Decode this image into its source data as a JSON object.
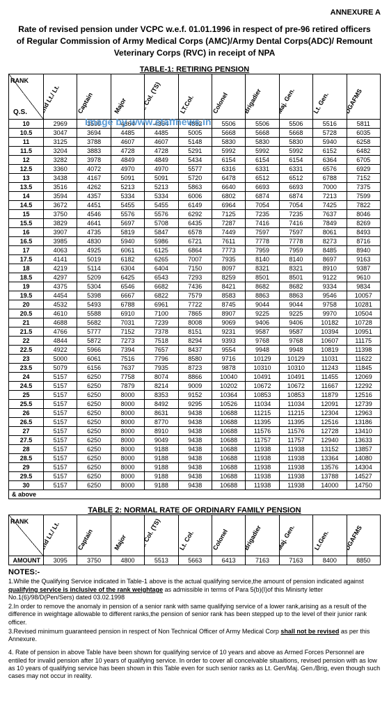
{
  "annexure": "ANNEXURE A",
  "heading": "Rate of revised pension under VCPC w.e.f. 01.01.1996 in respect of pre-96 retired officers of Regular Commission of Army Medical Corps (AMC)/Army Dental Corps(ADC)/ Remount Veterinary Corps (RVC) in receipt of NPA",
  "watermark": "Image by www.staffnews.in",
  "table1": {
    "title": "TABLE-1: RETIRING PENSION",
    "rank_label": "RANK",
    "qs_label": "Q.S.",
    "columns": [
      "2nd Lt./ Lt.",
      "Captain",
      "Major",
      "Lt. Col. (TS)",
      "LT.Col.",
      "Colonel",
      "Brigadier",
      "Maj. Gen.",
      "Lt. Gen.",
      "DGAFMS"
    ],
    "rows": [
      [
        "10",
        2969,
        3599,
        4364,
        4364,
        4862,
        5506,
        5506,
        5506,
        5516,
        5811
      ],
      [
        "10.5",
        3047,
        3694,
        4485,
        4485,
        5005,
        5668,
        5668,
        5668,
        5728,
        6035
      ],
      [
        "11",
        3125,
        3788,
        4607,
        4607,
        5148,
        5830,
        5830,
        5830,
        5940,
        6258
      ],
      [
        "11.5",
        3204,
        3883,
        4728,
        4728,
        5291,
        5992,
        5992,
        5992,
        6152,
        6482
      ],
      [
        "12",
        3282,
        3978,
        4849,
        4849,
        5434,
        6154,
        6154,
        6154,
        6364,
        6705
      ],
      [
        "12.5",
        3360,
        4072,
        4970,
        4970,
        5577,
        6316,
        6331,
        6331,
        6576,
        6929
      ],
      [
        "13",
        3438,
        4167,
        5091,
        5091,
        5720,
        6478,
        6512,
        6512,
        6788,
        7152
      ],
      [
        "13.5",
        3516,
        4262,
        5213,
        5213,
        5863,
        6640,
        6693,
        6693,
        7000,
        7375
      ],
      [
        "14",
        3594,
        4357,
        5334,
        5334,
        6006,
        6802,
        6874,
        6874,
        7213,
        7599
      ],
      [
        "14.5",
        3672,
        4451,
        5455,
        5455,
        6149,
        6964,
        7054,
        7054,
        7425,
        7822
      ],
      [
        "15",
        3750,
        4546,
        5576,
        5576,
        6292,
        7125,
        7235,
        7235,
        7637,
        8046
      ],
      [
        "15.5",
        3829,
        4641,
        5697,
        5708,
        6435,
        7287,
        7416,
        7416,
        7849,
        8269
      ],
      [
        "16",
        3907,
        4735,
        5819,
        5847,
        6578,
        7449,
        7597,
        7597,
        8061,
        8493
      ],
      [
        "16.5",
        3985,
        4830,
        5940,
        5986,
        6721,
        7611,
        7778,
        7778,
        8273,
        8716
      ],
      [
        "17",
        4063,
        4925,
        6061,
        6125,
        6864,
        7773,
        7959,
        7959,
        8485,
        8940
      ],
      [
        "17.5",
        4141,
        5019,
        6182,
        6265,
        7007,
        7935,
        8140,
        8140,
        8697,
        9163
      ],
      [
        "18",
        4219,
        5114,
        6304,
        6404,
        7150,
        8097,
        8321,
        8321,
        8910,
        9387
      ],
      [
        "18.5",
        4297,
        5209,
        6425,
        6543,
        7293,
        8259,
        8501,
        8501,
        9122,
        9610
      ],
      [
        "19",
        4375,
        5304,
        6546,
        6682,
        7436,
        8421,
        8682,
        8682,
        9334,
        9834
      ],
      [
        "19.5",
        4454,
        5398,
        6667,
        6822,
        7579,
        8583,
        8863,
        8863,
        9546,
        10057
      ],
      [
        "20",
        4532,
        5493,
        6788,
        6961,
        7722,
        8745,
        9044,
        9044,
        9758,
        10281
      ],
      [
        "20.5",
        4610,
        5588,
        6910,
        7100,
        7865,
        8907,
        9225,
        9225,
        9970,
        10504
      ],
      [
        "21",
        4688,
        5682,
        7031,
        7239,
        8008,
        9069,
        9406,
        9406,
        10182,
        10728
      ],
      [
        "21.5",
        4766,
        5777,
        7152,
        7378,
        8151,
        9231,
        9587,
        9587,
        10394,
        10951
      ],
      [
        "22",
        4844,
        5872,
        7273,
        7518,
        8294,
        9393,
        9768,
        9768,
        10607,
        11175
      ],
      [
        "22.5",
        4922,
        5966,
        7394,
        7657,
        8437,
        9554,
        9948,
        9948,
        10819,
        11398
      ],
      [
        "23",
        5000,
        6061,
        7516,
        7796,
        8580,
        9716,
        10129,
        10129,
        11031,
        11622
      ],
      [
        "23.5",
        5079,
        6156,
        7637,
        7935,
        8723,
        9878,
        10310,
        10310,
        11243,
        11845
      ],
      [
        "24",
        5157,
        6250,
        7758,
        8074,
        8866,
        10040,
        10491,
        10491,
        11455,
        12069
      ],
      [
        "24.5",
        5157,
        6250,
        7879,
        8214,
        9009,
        10202,
        10672,
        10672,
        11667,
        12292
      ],
      [
        "25",
        5157,
        6250,
        8000,
        8353,
        9152,
        10364,
        10853,
        10853,
        11879,
        12516
      ],
      [
        "25.5",
        5157,
        6250,
        8000,
        8492,
        9295,
        10526,
        11034,
        11034,
        12091,
        12739
      ],
      [
        "26",
        5157,
        6250,
        8000,
        8631,
        9438,
        10688,
        11215,
        11215,
        12304,
        12963
      ],
      [
        "26.5",
        5157,
        6250,
        8000,
        8770,
        9438,
        10688,
        11395,
        11395,
        12516,
        13186
      ],
      [
        "27",
        5157,
        6250,
        8000,
        8910,
        9438,
        10688,
        11576,
        11576,
        12728,
        13410
      ],
      [
        "27.5",
        5157,
        6250,
        8000,
        9049,
        9438,
        10688,
        11757,
        11757,
        12940,
        13633
      ],
      [
        "28",
        5157,
        6250,
        8000,
        9188,
        9438,
        10688,
        11938,
        11938,
        13152,
        13857
      ],
      [
        "28.5",
        5157,
        6250,
        8000,
        9188,
        9438,
        10688,
        11938,
        11938,
        13364,
        14080
      ],
      [
        "29",
        5157,
        6250,
        8000,
        9188,
        9438,
        10688,
        11938,
        11938,
        13576,
        14304
      ],
      [
        "29.5",
        5157,
        6250,
        8000,
        9188,
        9438,
        10688,
        11938,
        11938,
        13788,
        14527
      ],
      [
        "30",
        5157,
        6250,
        8000,
        9188,
        9438,
        10688,
        11938,
        11938,
        14000,
        14750
      ]
    ],
    "above_label": "& above"
  },
  "table2": {
    "title": "TABLE 2: NORMAL RATE OF ORDINARY FAMILY PENSION",
    "rank_label": "RANK",
    "row_label": "AMOUNT",
    "columns": [
      "2nd Lt./ Lt.",
      "Captain",
      "Major",
      "Lt. Col. (TS)",
      "Lt. Col.",
      "Colonel",
      "Brigadier",
      "Maj. Gen.",
      "Lt.Gen.",
      "DGAFMS"
    ],
    "values": [
      3095,
      3750,
      4800,
      5513,
      5663,
      6413,
      7163,
      7163,
      8400,
      8850
    ]
  },
  "notes": {
    "title": "NOTES:-",
    "n1a": "1.While the Qualifying Service indicated in Table-1 above is the actual qualifying service,the amount of pension indicated against ",
    "n1u": "qualifying service is inclusive of the rank weightage",
    "n1b": " as admissible in terms of Para 5(b)(I)of this Minisrty letter No.1(6)/98/D(Pen/Sers) dated 03.02.1998",
    "n2": "2.In order to remove the anomaly in pension of a senior rank with same qualifying service of a lower rank,arising as a result of the difference in weightage allowable to different ranks,the pension of senior rank has been stepped up to the level of their junior rank officer.",
    "n3a": "3.Revised minimum guaranteed pension in respect of Non Technical Officer of Army Medical Corp ",
    "n3u": "shall not be revised",
    "n3b": " as per this Annexure.",
    "n4": "4. Rate of pension in above Table have been shown for qualifying service of 10 years and above as Armed Forces Personnel are entiled for invalid pension after 10 years of qualifying service. In order to cover all conceivable situaitions, revised pension with as low as 10 years of qualifying service has been shown in this Table even for such senior ranks as Lt. Gen/Maj. Gen./Brig, even though such cases may not occur in reality."
  }
}
